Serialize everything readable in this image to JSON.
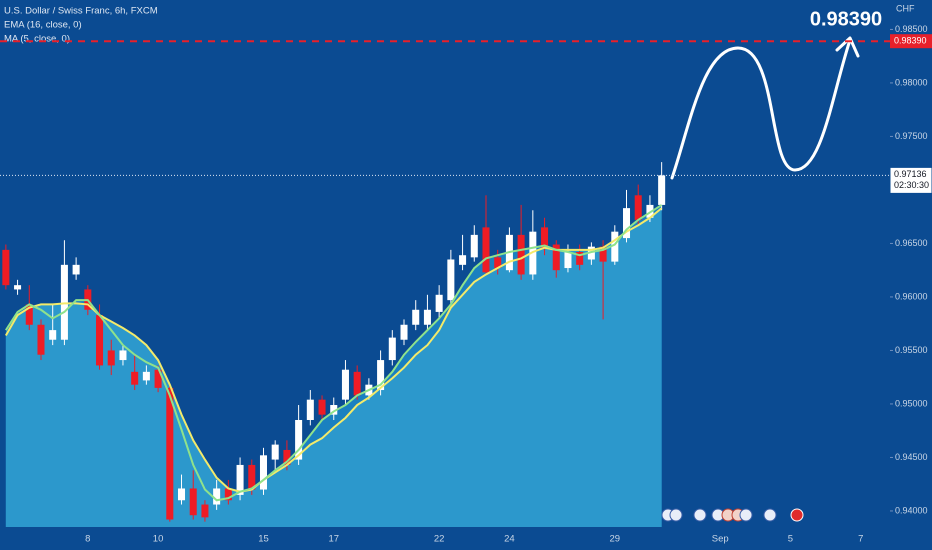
{
  "chart_data": {
    "type": "candlestick",
    "y_unit": "CHF",
    "annotation": "0.98390",
    "categories": [
      null,
      null,
      null,
      null,
      null,
      null,
      null,
      "8",
      null,
      null,
      null,
      null,
      null,
      "10",
      null,
      null,
      null,
      null,
      null,
      null,
      null,
      null,
      "15",
      null,
      null,
      null,
      null,
      null,
      "17",
      null,
      null,
      null,
      null,
      null,
      null,
      null,
      null,
      "22",
      null,
      null,
      null,
      null,
      null,
      "24",
      null,
      null,
      null,
      null,
      null,
      null,
      null,
      null,
      "29",
      null,
      null,
      null,
      null,
      null,
      null,
      null,
      null,
      "Sep",
      null,
      null,
      null,
      null,
      null,
      "5",
      null,
      null,
      null,
      null,
      null,
      "7",
      null,
      null
    ],
    "series": [
      {
        "name": "U.S. Dollar / Swiss Franc, 6h, FXCM",
        "up_color": "#ffffff",
        "down_color": "#ee1c25",
        "open": [
          0.9644,
          0.9607,
          0.9593,
          0.9574,
          0.956,
          0.956,
          0.9621,
          0.9607,
          0.9583,
          0.955,
          0.9541,
          0.953,
          0.9522,
          0.9532,
          0.9515,
          0.941,
          0.9421,
          0.9406,
          0.9406,
          0.9421,
          0.9415,
          0.9443,
          0.942,
          0.9448,
          0.9457,
          0.9448,
          0.9485,
          0.9504,
          0.949,
          0.9504,
          0.953,
          0.9508,
          0.9513,
          0.9541,
          0.956,
          0.9574,
          0.9574,
          0.9586,
          0.9597,
          0.963,
          0.9637,
          0.9665,
          0.9637,
          0.9625,
          0.9658,
          0.9621,
          0.9665,
          0.9649,
          0.9627,
          0.9642,
          0.9635,
          0.9647,
          0.9633,
          0.9655,
          0.9695,
          0.9674,
          0.9686,
          null,
          null,
          null,
          null,
          null,
          null,
          null,
          null,
          null,
          null,
          null,
          null,
          null,
          null,
          null,
          null,
          null,
          null,
          null
        ],
        "high": [
          0.9649,
          0.9616,
          0.9611,
          0.9579,
          0.9593,
          0.9653,
          0.9637,
          0.9611,
          0.9593,
          0.956,
          0.9555,
          0.9546,
          0.9536,
          0.9536,
          0.9518,
          0.9434,
          0.9438,
          0.941,
          0.9429,
          0.9429,
          0.945,
          0.9448,
          0.9459,
          0.9466,
          0.9466,
          0.9499,
          0.9513,
          0.9508,
          0.9506,
          0.9541,
          0.9536,
          0.9524,
          0.955,
          0.9569,
          0.9579,
          0.9597,
          0.9602,
          0.9611,
          0.9644,
          0.9658,
          0.9667,
          0.9695,
          0.9644,
          0.9665,
          0.9686,
          0.9681,
          0.9674,
          0.9653,
          0.9649,
          0.9649,
          0.9651,
          0.9653,
          0.9667,
          0.97,
          0.9705,
          0.9695,
          0.9726,
          null,
          null,
          null,
          null,
          null,
          null,
          null,
          null,
          null,
          null,
          null,
          null,
          null,
          null,
          null,
          null,
          null,
          null,
          null
        ],
        "low": [
          0.9607,
          0.9602,
          0.9569,
          0.9541,
          0.9555,
          0.9555,
          0.9616,
          0.9583,
          0.9532,
          0.9527,
          0.9536,
          0.9513,
          0.9518,
          0.9511,
          0.939,
          0.9406,
          0.9392,
          0.939,
          0.9401,
          0.9406,
          0.941,
          0.9415,
          0.9415,
          0.9438,
          0.9438,
          0.9443,
          0.948,
          0.9485,
          0.9485,
          0.9499,
          0.9504,
          0.9504,
          0.9508,
          0.9536,
          0.9555,
          0.9569,
          0.9569,
          0.958,
          0.9593,
          0.9625,
          0.9633,
          0.9621,
          0.9621,
          0.9623,
          0.9616,
          0.9616,
          0.9639,
          0.9618,
          0.9623,
          0.9625,
          0.963,
          0.9579,
          0.963,
          0.9651,
          0.9667,
          0.967,
          0.9681,
          null,
          null,
          null,
          null,
          null,
          null,
          null,
          null,
          null,
          null,
          null,
          null,
          null,
          null,
          null,
          null,
          null,
          null,
          null
        ],
        "close": [
          0.9611,
          0.9611,
          0.9574,
          0.9546,
          0.9569,
          0.963,
          0.963,
          0.9588,
          0.9536,
          0.9536,
          0.955,
          0.9518,
          0.953,
          0.9515,
          0.9392,
          0.9421,
          0.9396,
          0.9394,
          0.9421,
          0.941,
          0.9443,
          0.942,
          0.9452,
          0.9462,
          0.9443,
          0.9485,
          0.9504,
          0.949,
          0.9499,
          0.9532,
          0.9508,
          0.9518,
          0.9541,
          0.9562,
          0.9574,
          0.9588,
          0.9588,
          0.9602,
          0.9635,
          0.9639,
          0.9658,
          0.9623,
          0.9627,
          0.9658,
          0.9621,
          0.9661,
          0.9646,
          0.9625,
          0.9642,
          0.963,
          0.9647,
          0.9633,
          0.9661,
          0.9683,
          0.9672,
          0.9686,
          0.97136,
          null,
          null,
          null,
          null,
          null,
          null,
          null,
          null,
          null,
          null,
          null,
          null,
          null,
          null,
          null,
          null,
          null,
          null,
          null
        ]
      },
      {
        "name": "EMA (16, close, 0)",
        "color": "#f3ea6a",
        "area_color": "#2c98cc",
        "values": [
          0.9564,
          0.9583,
          0.959,
          0.9593,
          0.9593,
          0.9594,
          0.9594,
          0.9593,
          0.9583,
          0.9577,
          0.9571,
          0.9564,
          0.9555,
          0.9541,
          0.9518,
          0.949,
          0.9466,
          0.9448,
          0.9431,
          0.9421,
          0.9418,
          0.942,
          0.9429,
          0.9436,
          0.9443,
          0.9452,
          0.9462,
          0.9468,
          0.9478,
          0.9487,
          0.9499,
          0.9506,
          0.9515,
          0.9524,
          0.9534,
          0.9546,
          0.9555,
          0.9569,
          0.959,
          0.9602,
          0.9614,
          0.9621,
          0.9627,
          0.9633,
          0.9636,
          0.9642,
          0.9646,
          0.9644,
          0.9644,
          0.9644,
          0.9644,
          0.9646,
          0.9653,
          0.9661,
          0.9667,
          0.9674,
          0.9683,
          null,
          null,
          null,
          null,
          null,
          null,
          null,
          null,
          null,
          null,
          null,
          null,
          null,
          null,
          null,
          null,
          null,
          null,
          null
        ]
      },
      {
        "name": "MA (5, close, 0)",
        "color": "#8fe28c",
        "area_color": "#1a80c0",
        "values": [
          0.9569,
          0.9586,
          0.9593,
          0.9588,
          0.958,
          0.9586,
          0.9597,
          0.9597,
          0.9583,
          0.9569,
          0.9555,
          0.9546,
          0.9539,
          0.9534,
          0.9508,
          0.9476,
          0.9443,
          0.942,
          0.941,
          0.9412,
          0.9418,
          0.9421,
          0.9429,
          0.9438,
          0.9446,
          0.9457,
          0.9471,
          0.9485,
          0.9493,
          0.9499,
          0.9508,
          0.9513,
          0.9518,
          0.953,
          0.9546,
          0.9558,
          0.9569,
          0.958,
          0.9593,
          0.9611,
          0.9627,
          0.9636,
          0.9639,
          0.9642,
          0.9644,
          0.9646,
          0.9648,
          0.9644,
          0.9642,
          0.9639,
          0.9642,
          0.9644,
          0.9649,
          0.9663,
          0.9672,
          0.9679,
          0.9686,
          null,
          null,
          null,
          null,
          null,
          null,
          null,
          null,
          null,
          null,
          null,
          null,
          null,
          null,
          null,
          null,
          null,
          null,
          null
        ]
      }
    ],
    "ylim": [
      0.9385,
      0.98775
    ],
    "yticks": [
      {
        "value": 0.94,
        "label": "0.94000"
      },
      {
        "value": 0.945,
        "label": "0.94500"
      },
      {
        "value": 0.95,
        "label": "0.95000"
      },
      {
        "value": 0.955,
        "label": "0.95500"
      },
      {
        "value": 0.96,
        "label": "0.96000"
      },
      {
        "value": 0.965,
        "label": "0.96500"
      },
      {
        "value": 0.975,
        "label": "0.97500"
      },
      {
        "value": 0.98,
        "label": "0.98000"
      },
      {
        "value": 0.985,
        "label": "0.98500"
      }
    ],
    "target_line": {
      "value": 0.9839,
      "label": "0.98390",
      "color": "#e8202a"
    },
    "price_line": {
      "value": 0.97136,
      "countdown": "02:30:30"
    }
  }
}
